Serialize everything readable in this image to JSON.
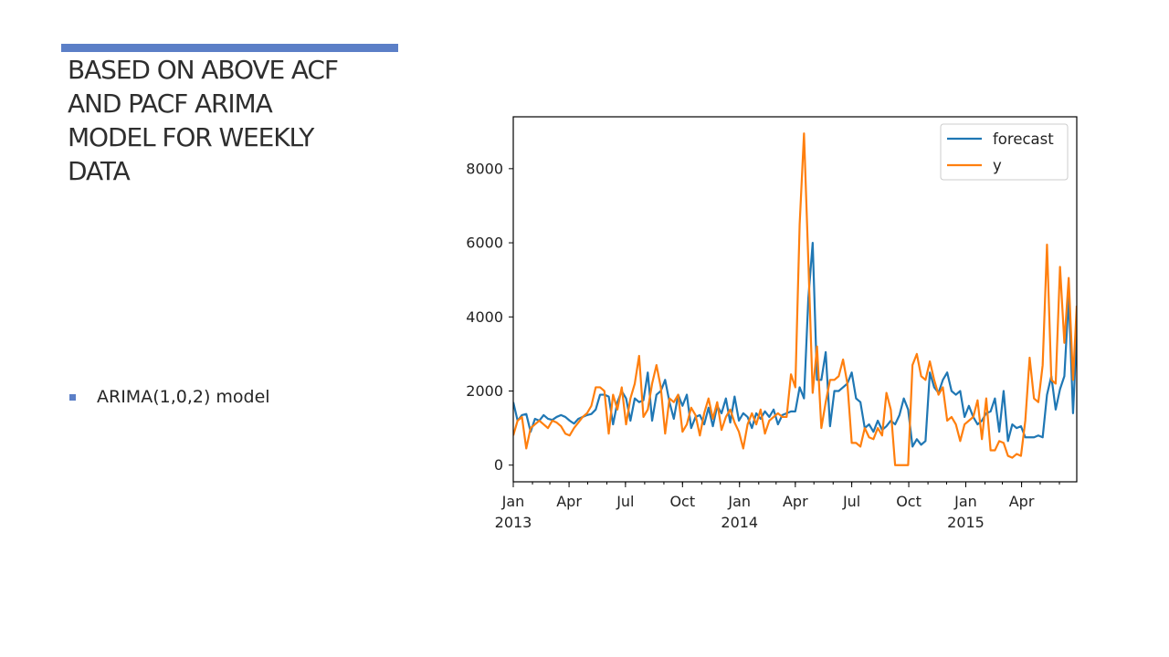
{
  "slide": {
    "title_lines": [
      "BASED ON ABOVE ACF",
      "AND PACF ARIMA",
      "MODEL FOR WEEKLY",
      "DATA"
    ],
    "bullet": "ARIMA(1,0,2) model",
    "accent_color": "#5b7fc7"
  },
  "chart_data": {
    "type": "line",
    "title": "",
    "xlabel": "",
    "ylabel": "",
    "x_range": [
      "2013-01-01",
      "2015-06-29"
    ],
    "ylim": [
      -450,
      9400
    ],
    "grid": false,
    "legend_position": "top-right",
    "x_tick_labels": [
      {
        "date": "2013-01-01",
        "label": "Jan",
        "year": "2013"
      },
      {
        "date": "2013-04-01",
        "label": "Apr",
        "year": ""
      },
      {
        "date": "2013-07-01",
        "label": "Jul",
        "year": ""
      },
      {
        "date": "2013-10-01",
        "label": "Oct",
        "year": ""
      },
      {
        "date": "2014-01-01",
        "label": "Jan",
        "year": "2014"
      },
      {
        "date": "2014-04-01",
        "label": "Apr",
        "year": ""
      },
      {
        "date": "2014-07-01",
        "label": "Jul",
        "year": ""
      },
      {
        "date": "2014-10-01",
        "label": "Oct",
        "year": ""
      },
      {
        "date": "2015-01-01",
        "label": "Jan",
        "year": "2015"
      },
      {
        "date": "2015-04-01",
        "label": "Apr",
        "year": ""
      }
    ],
    "y_ticks": [
      0,
      2000,
      4000,
      6000,
      8000
    ],
    "y_tick_labels": [
      "0",
      "2000",
      "4000",
      "6000",
      "8000"
    ],
    "series": [
      {
        "name": "forecast",
        "color": "#1f77b4",
        "points": [
          [
            "2013-01-01",
            1700
          ],
          [
            "2013-01-08",
            1200
          ],
          [
            "2013-01-15",
            1350
          ],
          [
            "2013-01-22",
            1380
          ],
          [
            "2013-01-29",
            900
          ],
          [
            "2013-02-05",
            1250
          ],
          [
            "2013-02-12",
            1200
          ],
          [
            "2013-02-19",
            1350
          ],
          [
            "2013-02-26",
            1250
          ],
          [
            "2013-03-05",
            1220
          ],
          [
            "2013-03-12",
            1300
          ],
          [
            "2013-03-19",
            1350
          ],
          [
            "2013-03-26",
            1300
          ],
          [
            "2013-04-02",
            1200
          ],
          [
            "2013-04-09",
            1120
          ],
          [
            "2013-04-16",
            1250
          ],
          [
            "2013-04-23",
            1300
          ],
          [
            "2013-04-30",
            1350
          ],
          [
            "2013-05-07",
            1380
          ],
          [
            "2013-05-14",
            1500
          ],
          [
            "2013-05-21",
            1900
          ],
          [
            "2013-05-28",
            1900
          ],
          [
            "2013-06-04",
            1850
          ],
          [
            "2013-06-11",
            1100
          ],
          [
            "2013-06-18",
            1700
          ],
          [
            "2013-06-25",
            2000
          ],
          [
            "2013-07-02",
            1800
          ],
          [
            "2013-07-09",
            1200
          ],
          [
            "2013-07-16",
            1800
          ],
          [
            "2013-07-23",
            1700
          ],
          [
            "2013-07-30",
            1750
          ],
          [
            "2013-08-06",
            2500
          ],
          [
            "2013-08-13",
            1200
          ],
          [
            "2013-08-20",
            1900
          ],
          [
            "2013-08-27",
            2000
          ],
          [
            "2013-09-03",
            2300
          ],
          [
            "2013-09-10",
            1700
          ],
          [
            "2013-09-17",
            1250
          ],
          [
            "2013-09-24",
            1900
          ],
          [
            "2013-10-01",
            1600
          ],
          [
            "2013-10-08",
            1900
          ],
          [
            "2013-10-15",
            1000
          ],
          [
            "2013-10-22",
            1300
          ],
          [
            "2013-10-29",
            1350
          ],
          [
            "2013-11-05",
            1100
          ],
          [
            "2013-11-12",
            1550
          ],
          [
            "2013-11-19",
            1050
          ],
          [
            "2013-11-26",
            1600
          ],
          [
            "2013-12-03",
            1400
          ],
          [
            "2013-12-10",
            1800
          ],
          [
            "2013-12-17",
            1150
          ],
          [
            "2013-12-24",
            1850
          ],
          [
            "2013-12-31",
            1200
          ],
          [
            "2014-01-07",
            1400
          ],
          [
            "2014-01-14",
            1300
          ],
          [
            "2014-01-21",
            1000
          ],
          [
            "2014-01-28",
            1400
          ],
          [
            "2014-02-04",
            1250
          ],
          [
            "2014-02-11",
            1450
          ],
          [
            "2014-02-18",
            1300
          ],
          [
            "2014-02-25",
            1500
          ],
          [
            "2014-03-04",
            1100
          ],
          [
            "2014-03-11",
            1350
          ],
          [
            "2014-03-18",
            1400
          ],
          [
            "2014-03-25",
            1450
          ],
          [
            "2014-04-01",
            1450
          ],
          [
            "2014-04-08",
            2100
          ],
          [
            "2014-04-15",
            1800
          ],
          [
            "2014-04-22",
            4500
          ],
          [
            "2014-04-29",
            6000
          ],
          [
            "2014-05-06",
            2300
          ],
          [
            "2014-05-13",
            2300
          ],
          [
            "2014-05-20",
            3050
          ],
          [
            "2014-05-27",
            1050
          ],
          [
            "2014-06-03",
            2000
          ],
          [
            "2014-06-10",
            2000
          ],
          [
            "2014-06-17",
            2100
          ],
          [
            "2014-06-24",
            2200
          ],
          [
            "2014-07-01",
            2500
          ],
          [
            "2014-07-08",
            1800
          ],
          [
            "2014-07-15",
            1700
          ],
          [
            "2014-07-22",
            1000
          ],
          [
            "2014-07-29",
            1100
          ],
          [
            "2014-08-05",
            900
          ],
          [
            "2014-08-12",
            1200
          ],
          [
            "2014-08-19",
            950
          ],
          [
            "2014-08-26",
            1050
          ],
          [
            "2014-09-02",
            1200
          ],
          [
            "2014-09-09",
            1100
          ],
          [
            "2014-09-16",
            1350
          ],
          [
            "2014-09-23",
            1800
          ],
          [
            "2014-09-30",
            1500
          ],
          [
            "2014-10-07",
            500
          ],
          [
            "2014-10-14",
            700
          ],
          [
            "2014-10-21",
            550
          ],
          [
            "2014-10-28",
            650
          ],
          [
            "2014-11-04",
            2500
          ],
          [
            "2014-11-11",
            2100
          ],
          [
            "2014-11-18",
            1950
          ],
          [
            "2014-11-25",
            2300
          ],
          [
            "2014-12-02",
            2500
          ],
          [
            "2014-12-09",
            2000
          ],
          [
            "2014-12-16",
            1900
          ],
          [
            "2014-12-23",
            2000
          ],
          [
            "2014-12-30",
            1300
          ],
          [
            "2015-01-06",
            1600
          ],
          [
            "2015-01-13",
            1300
          ],
          [
            "2015-01-20",
            1100
          ],
          [
            "2015-01-27",
            1200
          ],
          [
            "2015-02-03",
            1400
          ],
          [
            "2015-02-10",
            1450
          ],
          [
            "2015-02-17",
            1800
          ],
          [
            "2015-02-24",
            900
          ],
          [
            "2015-03-03",
            2000
          ],
          [
            "2015-03-10",
            650
          ],
          [
            "2015-03-17",
            1100
          ],
          [
            "2015-03-24",
            1000
          ],
          [
            "2015-03-31",
            1050
          ],
          [
            "2015-04-07",
            750
          ],
          [
            "2015-04-14",
            750
          ],
          [
            "2015-04-21",
            750
          ],
          [
            "2015-04-28",
            800
          ],
          [
            "2015-05-05",
            750
          ],
          [
            "2015-05-12",
            1900
          ],
          [
            "2015-05-19",
            2400
          ],
          [
            "2015-05-26",
            1500
          ],
          [
            "2015-06-02",
            2050
          ],
          [
            "2015-06-09",
            2400
          ],
          [
            "2015-06-16",
            4550
          ],
          [
            "2015-06-23",
            1400
          ],
          [
            "2015-06-29",
            3600
          ]
        ]
      },
      {
        "name": "y",
        "color": "#ff7f0e",
        "points": [
          [
            "2013-01-01",
            800
          ],
          [
            "2013-01-08",
            1200
          ],
          [
            "2013-01-15",
            1300
          ],
          [
            "2013-01-22",
            450
          ],
          [
            "2013-01-29",
            1000
          ],
          [
            "2013-02-05",
            1100
          ],
          [
            "2013-02-12",
            1200
          ],
          [
            "2013-02-19",
            1100
          ],
          [
            "2013-02-26",
            1000
          ],
          [
            "2013-03-05",
            1200
          ],
          [
            "2013-03-12",
            1150
          ],
          [
            "2013-03-19",
            1050
          ],
          [
            "2013-03-26",
            850
          ],
          [
            "2013-04-02",
            800
          ],
          [
            "2013-04-09",
            1000
          ],
          [
            "2013-04-16",
            1150
          ],
          [
            "2013-04-23",
            1300
          ],
          [
            "2013-04-30",
            1400
          ],
          [
            "2013-05-07",
            1600
          ],
          [
            "2013-05-14",
            2100
          ],
          [
            "2013-05-21",
            2100
          ],
          [
            "2013-05-28",
            2000
          ],
          [
            "2013-06-04",
            850
          ],
          [
            "2013-06-11",
            1900
          ],
          [
            "2013-06-18",
            1500
          ],
          [
            "2013-06-25",
            2100
          ],
          [
            "2013-07-02",
            1100
          ],
          [
            "2013-07-09",
            1800
          ],
          [
            "2013-07-16",
            2200
          ],
          [
            "2013-07-23",
            2950
          ],
          [
            "2013-07-30",
            1300
          ],
          [
            "2013-08-06",
            1500
          ],
          [
            "2013-08-13",
            2200
          ],
          [
            "2013-08-20",
            2700
          ],
          [
            "2013-08-27",
            2100
          ],
          [
            "2013-09-03",
            850
          ],
          [
            "2013-09-10",
            1800
          ],
          [
            "2013-09-17",
            1700
          ],
          [
            "2013-09-24",
            1900
          ],
          [
            "2013-10-01",
            900
          ],
          [
            "2013-10-08",
            1100
          ],
          [
            "2013-10-15",
            1550
          ],
          [
            "2013-10-22",
            1350
          ],
          [
            "2013-10-29",
            800
          ],
          [
            "2013-11-05",
            1400
          ],
          [
            "2013-11-12",
            1800
          ],
          [
            "2013-11-19",
            1250
          ],
          [
            "2013-11-26",
            1700
          ],
          [
            "2013-12-03",
            950
          ],
          [
            "2013-12-10",
            1300
          ],
          [
            "2013-12-17",
            1500
          ],
          [
            "2013-12-24",
            1150
          ],
          [
            "2013-12-31",
            900
          ],
          [
            "2014-01-07",
            450
          ],
          [
            "2014-01-14",
            1100
          ],
          [
            "2014-01-21",
            1400
          ],
          [
            "2014-01-28",
            1100
          ],
          [
            "2014-02-04",
            1500
          ],
          [
            "2014-02-11",
            850
          ],
          [
            "2014-02-18",
            1200
          ],
          [
            "2014-02-25",
            1300
          ],
          [
            "2014-03-04",
            1400
          ],
          [
            "2014-03-11",
            1300
          ],
          [
            "2014-03-18",
            1300
          ],
          [
            "2014-03-25",
            2450
          ],
          [
            "2014-04-01",
            2100
          ],
          [
            "2014-04-08",
            6500
          ],
          [
            "2014-04-15",
            8950
          ],
          [
            "2014-04-22",
            5500
          ],
          [
            "2014-04-29",
            1950
          ],
          [
            "2014-05-06",
            3200
          ],
          [
            "2014-05-13",
            1000
          ],
          [
            "2014-05-20",
            1700
          ],
          [
            "2014-05-27",
            2300
          ],
          [
            "2014-06-03",
            2300
          ],
          [
            "2014-06-10",
            2400
          ],
          [
            "2014-06-17",
            2850
          ],
          [
            "2014-06-24",
            2200
          ],
          [
            "2014-07-01",
            600
          ],
          [
            "2014-07-08",
            600
          ],
          [
            "2014-07-15",
            500
          ],
          [
            "2014-07-22",
            1000
          ],
          [
            "2014-07-29",
            750
          ],
          [
            "2014-08-05",
            700
          ],
          [
            "2014-08-12",
            1000
          ],
          [
            "2014-08-19",
            800
          ],
          [
            "2014-08-26",
            1950
          ],
          [
            "2014-09-02",
            1500
          ],
          [
            "2014-09-09",
            0
          ],
          [
            "2014-09-16",
            0
          ],
          [
            "2014-09-23",
            0
          ],
          [
            "2014-09-30",
            0
          ],
          [
            "2014-10-07",
            2700
          ],
          [
            "2014-10-14",
            3000
          ],
          [
            "2014-10-21",
            2400
          ],
          [
            "2014-10-28",
            2300
          ],
          [
            "2014-11-04",
            2800
          ],
          [
            "2014-11-11",
            2300
          ],
          [
            "2014-11-18",
            1900
          ],
          [
            "2014-11-25",
            2100
          ],
          [
            "2014-12-02",
            1200
          ],
          [
            "2014-12-09",
            1300
          ],
          [
            "2014-12-16",
            1100
          ],
          [
            "2014-12-23",
            650
          ],
          [
            "2014-12-30",
            1100
          ],
          [
            "2015-01-06",
            1200
          ],
          [
            "2015-01-13",
            1300
          ],
          [
            "2015-01-20",
            1750
          ],
          [
            "2015-01-27",
            700
          ],
          [
            "2015-02-03",
            1800
          ],
          [
            "2015-02-10",
            400
          ],
          [
            "2015-02-17",
            400
          ],
          [
            "2015-02-24",
            650
          ],
          [
            "2015-03-03",
            600
          ],
          [
            "2015-03-10",
            250
          ],
          [
            "2015-03-17",
            200
          ],
          [
            "2015-03-24",
            300
          ],
          [
            "2015-03-31",
            250
          ],
          [
            "2015-04-07",
            1200
          ],
          [
            "2015-04-14",
            2900
          ],
          [
            "2015-04-21",
            1800
          ],
          [
            "2015-04-28",
            1700
          ],
          [
            "2015-05-05",
            2700
          ],
          [
            "2015-05-12",
            5950
          ],
          [
            "2015-05-19",
            2300
          ],
          [
            "2015-05-26",
            2200
          ],
          [
            "2015-06-02",
            5350
          ],
          [
            "2015-06-09",
            3300
          ],
          [
            "2015-06-16",
            5050
          ],
          [
            "2015-06-23",
            2300
          ],
          [
            "2015-06-29",
            4300
          ]
        ]
      }
    ]
  }
}
